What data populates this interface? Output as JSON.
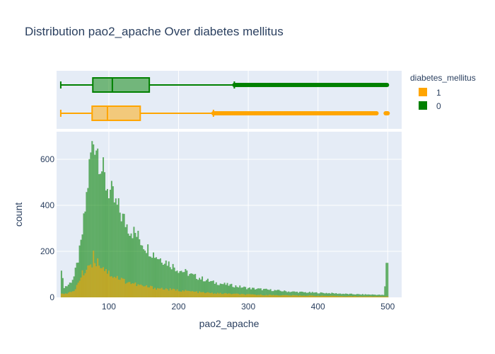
{
  "chart_data": {
    "type": "bar",
    "title": "Distribution pao2_apache Over diabetes mellitus",
    "xlabel": "pao2_apache",
    "ylabel": "count",
    "xlim": [
      25,
      520
    ],
    "ylim": [
      0,
      720
    ],
    "x_ticks": [
      100,
      200,
      300,
      400,
      500
    ],
    "y_ticks": [
      0,
      200,
      400,
      600
    ],
    "barmode": "overlay",
    "grid": true,
    "legend": {
      "title": "diabetes_mellitus",
      "position": "top-right",
      "entries": [
        {
          "label": "1",
          "color": "#FFA500"
        },
        {
          "label": "0",
          "color": "#008000"
        }
      ]
    },
    "series": [
      {
        "name": "0",
        "color": "#008000",
        "box": {
          "min": 31,
          "q1": 77,
          "median": 105,
          "q3": 158,
          "upper_fence": 280,
          "max": 500
        },
        "hist_points": [
          [
            31,
            165
          ],
          [
            35,
            45
          ],
          [
            40,
            50
          ],
          [
            45,
            65
          ],
          [
            50,
            90
          ],
          [
            55,
            150
          ],
          [
            60,
            230
          ],
          [
            65,
            350
          ],
          [
            70,
            500
          ],
          [
            74,
            620
          ],
          [
            78,
            680
          ],
          [
            80,
            690
          ],
          [
            83,
            660
          ],
          [
            87,
            610
          ],
          [
            90,
            560
          ],
          [
            95,
            500
          ],
          [
            100,
            470
          ],
          [
            105,
            440
          ],
          [
            110,
            400
          ],
          [
            115,
            380
          ],
          [
            120,
            345
          ],
          [
            125,
            320
          ],
          [
            130,
            300
          ],
          [
            140,
            270
          ],
          [
            150,
            230
          ],
          [
            160,
            200
          ],
          [
            170,
            175
          ],
          [
            180,
            160
          ],
          [
            190,
            140
          ],
          [
            200,
            120
          ],
          [
            210,
            110
          ],
          [
            220,
            95
          ],
          [
            230,
            85
          ],
          [
            240,
            75
          ],
          [
            250,
            65
          ],
          [
            260,
            60
          ],
          [
            270,
            55
          ],
          [
            280,
            50
          ],
          [
            290,
            45
          ],
          [
            300,
            40
          ],
          [
            320,
            35
          ],
          [
            340,
            30
          ],
          [
            360,
            25
          ],
          [
            380,
            22
          ],
          [
            400,
            20
          ],
          [
            420,
            18
          ],
          [
            440,
            15
          ],
          [
            460,
            13
          ],
          [
            480,
            12
          ],
          [
            495,
            10
          ],
          [
            499,
            150
          ],
          [
            500,
            0
          ]
        ]
      },
      {
        "name": "1",
        "color": "#FFA500",
        "box": {
          "min": 31,
          "q1": 76,
          "median": 98,
          "q3": 145,
          "upper_fence": 250,
          "max": 500
        },
        "hist_points": [
          [
            31,
            20
          ],
          [
            40,
            15
          ],
          [
            50,
            30
          ],
          [
            55,
            55
          ],
          [
            60,
            90
          ],
          [
            65,
            115
          ],
          [
            70,
            135
          ],
          [
            75,
            150
          ],
          [
            78,
            175
          ],
          [
            82,
            160
          ],
          [
            88,
            145
          ],
          [
            95,
            125
          ],
          [
            100,
            105
          ],
          [
            110,
            90
          ],
          [
            120,
            75
          ],
          [
            130,
            65
          ],
          [
            140,
            55
          ],
          [
            150,
            48
          ],
          [
            170,
            40
          ],
          [
            190,
            33
          ],
          [
            210,
            28
          ],
          [
            230,
            22
          ],
          [
            250,
            18
          ],
          [
            280,
            15
          ],
          [
            300,
            12
          ],
          [
            350,
            9
          ],
          [
            400,
            7
          ],
          [
            450,
            5
          ],
          [
            495,
            4
          ],
          [
            500,
            0
          ]
        ]
      }
    ]
  }
}
